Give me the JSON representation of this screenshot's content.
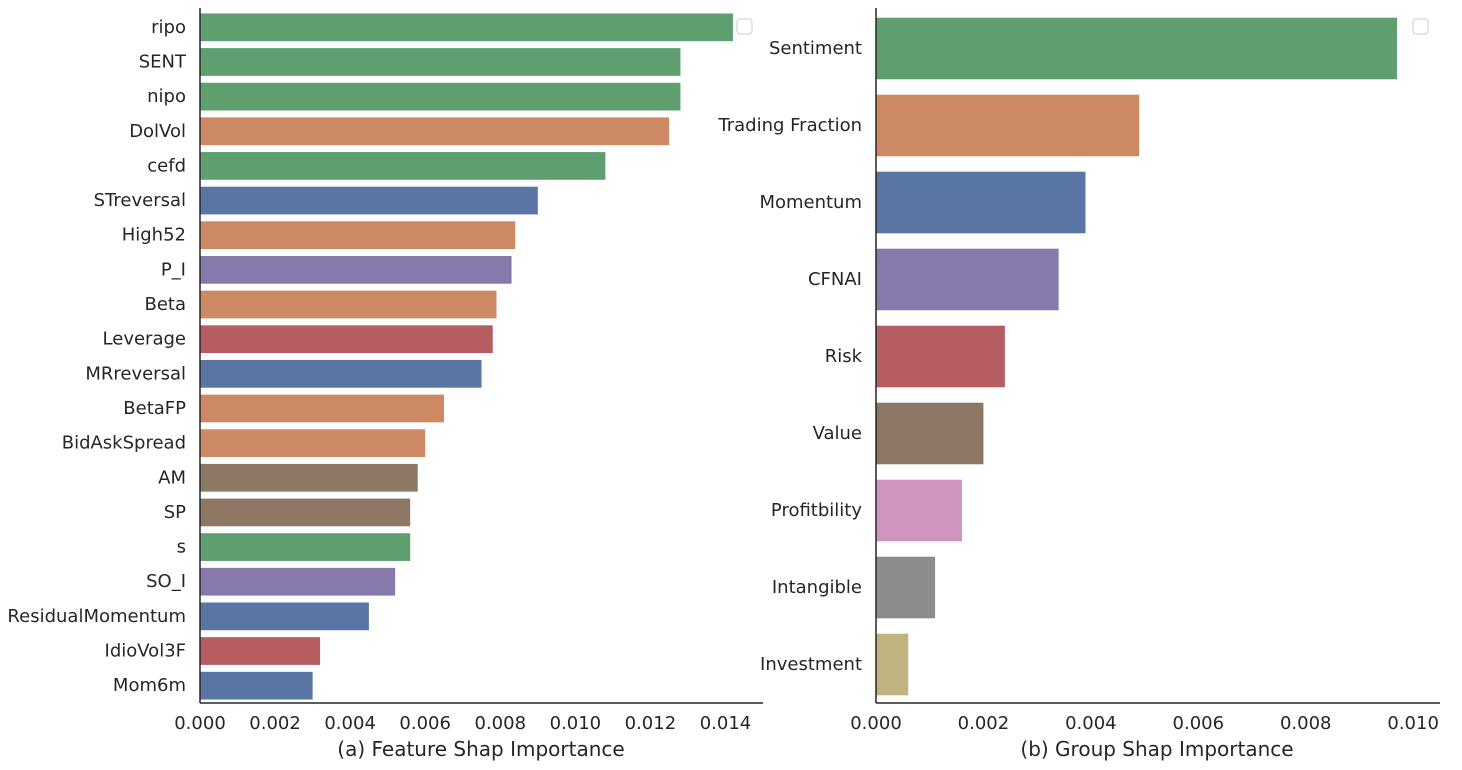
{
  "chart_data": [
    {
      "type": "bar",
      "orientation": "horizontal",
      "xlabel": "(a) Feature Shap Importance",
      "xlim": [
        0,
        0.015
      ],
      "xticks": [
        "0.000",
        "0.002",
        "0.004",
        "0.006",
        "0.008",
        "0.010",
        "0.012",
        "0.014"
      ],
      "xtick_values": [
        0,
        0.002,
        0.004,
        0.006,
        0.008,
        0.01,
        0.012,
        0.014
      ],
      "grid": false,
      "legend": "top-right (empty)",
      "categories": [
        "ripo",
        "SENT",
        "nipo",
        "DolVol",
        "cefd",
        "STreversal",
        "High52",
        "P_I",
        "Beta",
        "Leverage",
        "MRreversal",
        "BetaFP",
        "BidAskSpread",
        "AM",
        "SP",
        "s",
        "SO_I",
        "ResidualMomentum",
        "IdioVol3F",
        "Mom6m"
      ],
      "values": [
        0.0142,
        0.0128,
        0.0128,
        0.0125,
        0.0108,
        0.009,
        0.0084,
        0.0083,
        0.0079,
        0.0078,
        0.0075,
        0.0065,
        0.006,
        0.0058,
        0.0056,
        0.0056,
        0.0052,
        0.0045,
        0.0032,
        0.003
      ],
      "colors": [
        "#5f9e6e",
        "#5f9e6e",
        "#5f9e6e",
        "#cc8963",
        "#5f9e6e",
        "#5875a4",
        "#cc8963",
        "#857aab",
        "#cc8963",
        "#b55d60",
        "#5875a4",
        "#cc8963",
        "#cc8963",
        "#8d7866",
        "#8d7866",
        "#5f9e6e",
        "#857aab",
        "#5875a4",
        "#b55d60",
        "#5875a4"
      ]
    },
    {
      "type": "bar",
      "orientation": "horizontal",
      "xlabel": "(b) Group Shap Importance",
      "xlim": [
        0,
        0.0105
      ],
      "xticks": [
        "0.000",
        "0.002",
        "0.004",
        "0.006",
        "0.008",
        "0.010"
      ],
      "xtick_values": [
        0,
        0.002,
        0.004,
        0.006,
        0.008,
        0.01
      ],
      "grid": false,
      "legend": "top-right (empty)",
      "categories": [
        "Sentiment",
        "Trading Fraction",
        "Momentum",
        "CFNAI",
        "Risk",
        "Value",
        "Profitbility",
        "Intangible",
        "Investment"
      ],
      "values": [
        0.0097,
        0.0049,
        0.0039,
        0.0034,
        0.0024,
        0.002,
        0.0016,
        0.0011,
        0.0006
      ],
      "colors": [
        "#5f9e6e",
        "#cc8963",
        "#5875a4",
        "#857aab",
        "#b55d60",
        "#8d7866",
        "#d095bf",
        "#8c8c8c",
        "#c1b37f"
      ]
    }
  ]
}
